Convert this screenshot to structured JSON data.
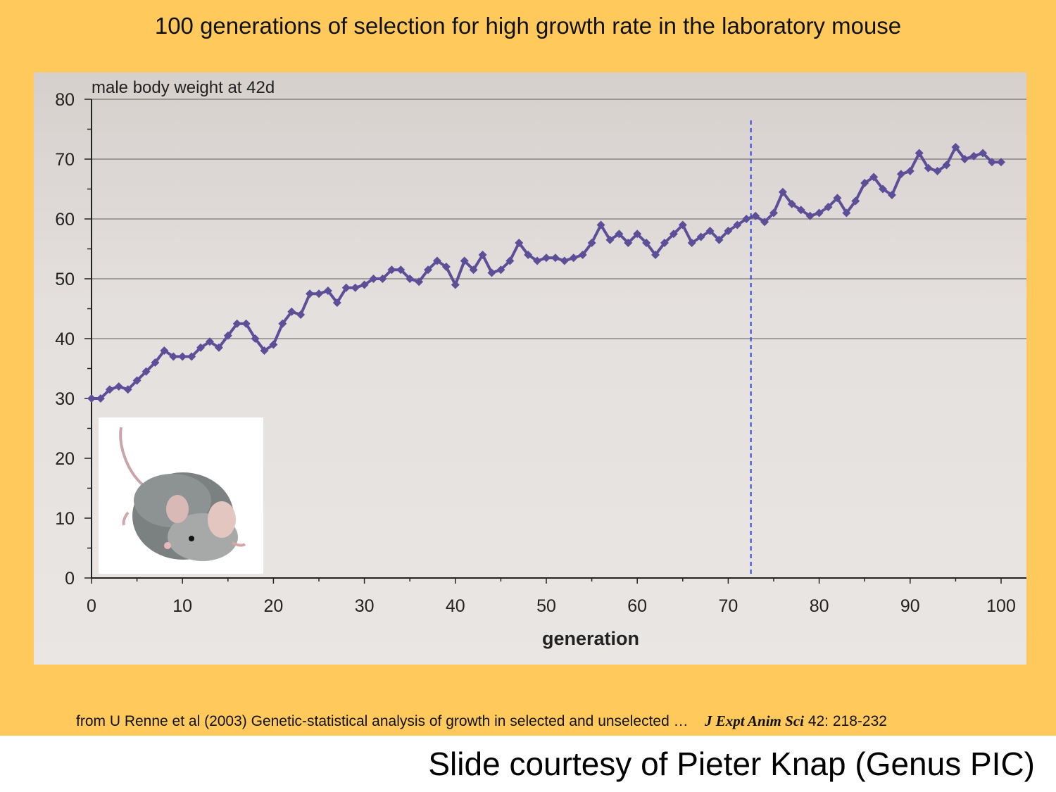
{
  "slide": {
    "title": "100 generations of selection for high growth rate in the laboratory mouse",
    "background_color": "#ffc95c",
    "citation": {
      "text": "from U Renne et al (2003) Genetic-statistical analysis of growth in selected and unselected …",
      "journal": "J Expt Anim Sci",
      "volume_pages": "42: 218-232"
    },
    "credit": "Slide courtesy of Pieter Knap (Genus PIC)",
    "image_icon": "mouse-photo-icon"
  },
  "chart_data": {
    "type": "line",
    "title": "",
    "ylabel": "male body weight at 42d",
    "xlabel": "generation",
    "xlim": [
      0,
      100
    ],
    "ylim": [
      0,
      80
    ],
    "x_ticks": [
      0,
      10,
      20,
      30,
      40,
      50,
      60,
      70,
      80,
      90,
      100
    ],
    "y_ticks": [
      0,
      10,
      20,
      30,
      40,
      50,
      60,
      70,
      80
    ],
    "grid": "horizontal at 40, 50, 60, 70, 80",
    "reference_line_x": 72.5,
    "series_color": "#5c4f98",
    "reference_line_color": "#3344dd",
    "series": [
      {
        "name": "",
        "x": [
          0,
          1,
          2,
          3,
          4,
          5,
          6,
          7,
          8,
          9,
          10,
          11,
          12,
          13,
          14,
          15,
          16,
          17,
          18,
          19,
          20,
          21,
          22,
          23,
          24,
          25,
          26,
          27,
          28,
          29,
          30,
          31,
          32,
          33,
          34,
          35,
          36,
          37,
          38,
          39,
          40,
          41,
          42,
          43,
          44,
          45,
          46,
          47,
          48,
          49,
          50,
          51,
          52,
          53,
          54,
          55,
          56,
          57,
          58,
          59,
          60,
          61,
          62,
          63,
          64,
          65,
          66,
          67,
          68,
          69,
          70,
          71,
          72,
          73,
          74,
          75,
          76,
          77,
          78,
          79,
          80,
          81,
          82,
          83,
          84,
          85,
          86,
          87,
          88,
          89,
          90,
          91,
          92,
          93,
          94,
          95,
          96,
          97,
          98,
          99,
          100
        ],
        "y": [
          30,
          30,
          31.5,
          32,
          31.5,
          33,
          34.5,
          36,
          38,
          37,
          37,
          37,
          38.5,
          39.5,
          38.5,
          40.5,
          42.5,
          42.5,
          40,
          38,
          39,
          42.5,
          44.5,
          44,
          47.5,
          47.5,
          48,
          46,
          48.5,
          48.5,
          49,
          50,
          50,
          51.5,
          51.5,
          50,
          49.5,
          51.5,
          53,
          52,
          49,
          53,
          51.5,
          54,
          51,
          51.5,
          53,
          56,
          54,
          53,
          53.5,
          53.5,
          53,
          53.5,
          54,
          56,
          59,
          56.5,
          57.5,
          56,
          57.5,
          56,
          54,
          56,
          57.5,
          59,
          56,
          57,
          58,
          56.5,
          58,
          59,
          60,
          60.5,
          59.5,
          61,
          64.5,
          62.5,
          61.5,
          60.5,
          61,
          62,
          63.5,
          61,
          63,
          66,
          67,
          65,
          64,
          67.5,
          68,
          71,
          68.5,
          68,
          69,
          72,
          70,
          70.5,
          71,
          69.5,
          69.5
        ]
      }
    ]
  }
}
